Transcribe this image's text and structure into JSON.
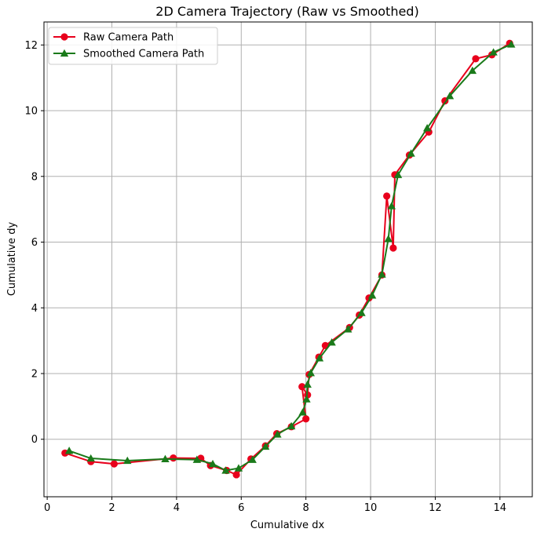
{
  "chart_data": {
    "type": "line",
    "title": "2D Camera Trajectory (Raw vs Smoothed)",
    "xlabel": "Cumulative dx",
    "ylabel": "Cumulative dy",
    "xlim": [
      -0.1,
      15.0
    ],
    "ylim": [
      -1.75,
      12.7
    ],
    "xticks": [
      0,
      2,
      4,
      6,
      8,
      10,
      12,
      14
    ],
    "yticks": [
      0,
      2,
      4,
      6,
      8,
      10,
      12
    ],
    "grid": true,
    "legend_position": "top-left",
    "series": [
      {
        "name": "Raw Camera Path",
        "color": "#e8001c",
        "marker": "circle",
        "x": [
          0.55,
          1.35,
          2.07,
          3.9,
          4.75,
          5.05,
          5.55,
          5.85,
          6.3,
          6.75,
          7.1,
          7.55,
          8.0,
          7.88,
          8.05,
          8.1,
          8.4,
          8.6,
          9.35,
          9.65,
          9.95,
          10.35,
          10.5,
          10.7,
          10.75,
          11.2,
          11.8,
          12.3,
          13.25,
          13.75,
          14.3
        ],
        "y": [
          -0.42,
          -0.68,
          -0.75,
          -0.57,
          -0.58,
          -0.8,
          -0.95,
          -1.08,
          -0.6,
          -0.2,
          0.17,
          0.38,
          0.62,
          1.6,
          1.35,
          1.97,
          2.5,
          2.85,
          3.4,
          3.78,
          4.3,
          5.0,
          7.4,
          5.82,
          8.05,
          8.65,
          9.35,
          10.3,
          11.58,
          11.7,
          12.05
        ]
      },
      {
        "name": "Smoothed Camera Path",
        "color": "#1a7a1a",
        "marker": "triangle",
        "x": [
          0.68,
          1.35,
          2.48,
          3.65,
          4.63,
          5.12,
          5.52,
          5.92,
          6.35,
          6.75,
          7.12,
          7.55,
          7.9,
          8.02,
          8.05,
          8.15,
          8.42,
          8.8,
          9.3,
          9.72,
          10.05,
          10.35,
          10.55,
          10.65,
          10.85,
          11.25,
          11.75,
          12.45,
          13.15,
          13.8,
          14.35
        ],
        "y": [
          -0.35,
          -0.58,
          -0.65,
          -0.6,
          -0.62,
          -0.75,
          -0.95,
          -0.88,
          -0.62,
          -0.22,
          0.15,
          0.4,
          0.82,
          1.22,
          1.67,
          2.02,
          2.47,
          2.95,
          3.35,
          3.85,
          4.38,
          5.02,
          6.1,
          7.1,
          8.05,
          8.7,
          9.47,
          10.45,
          11.22,
          11.78,
          12.02
        ]
      }
    ]
  }
}
